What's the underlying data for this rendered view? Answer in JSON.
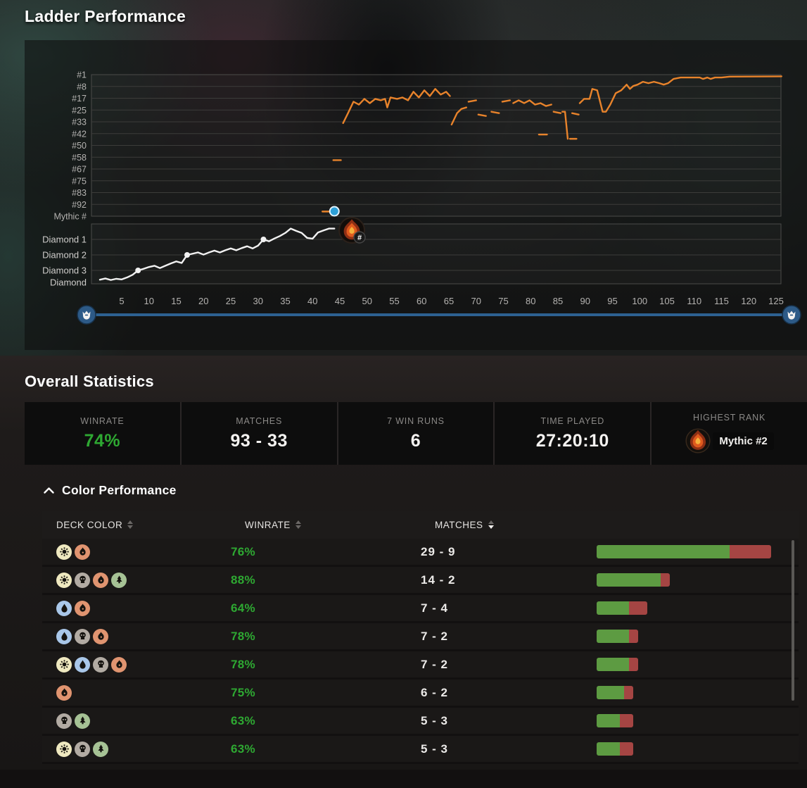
{
  "page": {
    "title": "Ladder Performance",
    "overall_title": "Overall Statistics",
    "color_perf_title": "Color Performance"
  },
  "chart_data": {
    "type": "line",
    "title": "Ladder Performance",
    "x_range": [
      1,
      126
    ],
    "x_ticks": [
      5,
      10,
      15,
      20,
      25,
      30,
      35,
      40,
      45,
      50,
      55,
      60,
      65,
      70,
      75,
      80,
      85,
      90,
      95,
      100,
      105,
      110,
      115,
      120,
      125
    ],
    "mythic_axis_labels": [
      "#1",
      "#8",
      "#17",
      "#25",
      "#33",
      "#42",
      "#50",
      "#58",
      "#67",
      "#75",
      "#83",
      "#92",
      "Mythic #"
    ],
    "diamond_axis_labels": [
      "Diamond 1",
      "Diamond 2",
      "Diamond 3",
      "Diamond"
    ],
    "grid": true,
    "series": [
      {
        "name": "mythic-rank",
        "color": "#e8832b",
        "segments": [
          [
            [
              41.8,
              97
            ],
            [
              43.2,
              97
            ]
          ],
          [
            [
              43.8,
              61
            ],
            [
              45.2,
              61
            ]
          ],
          [
            [
              45.6,
              35
            ],
            [
              46.5,
              28
            ],
            [
              47.5,
              20
            ],
            [
              48.5,
              22
            ],
            [
              49.5,
              18
            ],
            [
              50.5,
              21
            ],
            [
              51.5,
              18
            ],
            [
              52.5,
              19
            ],
            [
              53.3,
              18
            ],
            [
              53.7,
              24
            ],
            [
              54.3,
              17
            ],
            [
              55.5,
              18
            ],
            [
              56.5,
              17
            ],
            [
              57.5,
              19
            ],
            [
              58.5,
              13
            ],
            [
              59.5,
              17
            ],
            [
              60.5,
              12
            ],
            [
              61.5,
              16
            ],
            [
              62.5,
              11
            ],
            [
              63.5,
              15
            ],
            [
              64.5,
              13
            ],
            [
              65.2,
              16
            ]
          ],
          [
            [
              65.5,
              36
            ],
            [
              66.5,
              28
            ],
            [
              67.3,
              25
            ],
            [
              68.2,
              24
            ]
          ],
          [
            [
              68.6,
              20
            ],
            [
              70,
              19
            ]
          ],
          [
            [
              70.4,
              29
            ],
            [
              71.8,
              30
            ]
          ],
          [
            [
              72.8,
              27
            ],
            [
              74.2,
              28
            ]
          ],
          [
            [
              74.8,
              20
            ],
            [
              76.2,
              19
            ]
          ],
          [
            [
              76.8,
              21
            ],
            [
              77.8,
              19
            ],
            [
              78.8,
              21
            ],
            [
              79.8,
              19
            ],
            [
              80.8,
              22
            ],
            [
              81.8,
              21
            ],
            [
              82.8,
              23
            ],
            [
              83.8,
              22
            ]
          ],
          [
            [
              81.5,
              43
            ],
            [
              83,
              43
            ]
          ],
          [
            [
              84.2,
              27
            ],
            [
              85.5,
              28
            ]
          ],
          [
            [
              85.8,
              27
            ],
            [
              86.3,
              27
            ],
            [
              86.8,
              46
            ]
          ],
          [
            [
              87.2,
              46
            ],
            [
              88.4,
              46
            ]
          ],
          [
            [
              87.6,
              28
            ],
            [
              88.8,
              29
            ]
          ],
          [
            [
              89,
              21
            ],
            [
              89.8,
              18
            ],
            [
              90.8,
              18
            ],
            [
              91.3,
              11
            ],
            [
              92.2,
              12
            ],
            [
              93.2,
              27
            ],
            [
              93.8,
              27
            ],
            [
              94.6,
              22
            ],
            [
              95.6,
              14
            ],
            [
              96.6,
              12
            ],
            [
              97.6,
              8
            ],
            [
              98.2,
              11
            ],
            [
              98.8,
              9
            ],
            [
              99.6,
              8
            ],
            [
              100.6,
              6
            ],
            [
              101.6,
              7
            ],
            [
              102.6,
              6
            ],
            [
              103.6,
              7
            ],
            [
              104.4,
              8
            ],
            [
              105.2,
              7
            ],
            [
              106.2,
              4
            ],
            [
              107.5,
              3
            ],
            [
              111,
              3
            ],
            [
              111.6,
              4
            ],
            [
              112.4,
              3
            ],
            [
              113,
              4
            ],
            [
              113.8,
              3
            ],
            [
              115,
              3
            ],
            [
              116.5,
              2.4
            ],
            [
              126,
              2.2
            ]
          ]
        ]
      },
      {
        "name": "diamond-progress",
        "color": "#f2f2f2",
        "points": [
          [
            1,
            0.4
          ],
          [
            2,
            0.48
          ],
          [
            3,
            0.38
          ],
          [
            4,
            0.46
          ],
          [
            5,
            0.42
          ],
          [
            6,
            0.55
          ],
          [
            7,
            0.72
          ],
          [
            8,
            1.0
          ],
          [
            9,
            1.1
          ],
          [
            10,
            1.22
          ],
          [
            11,
            1.3
          ],
          [
            12,
            1.15
          ],
          [
            13,
            1.3
          ],
          [
            14,
            1.45
          ],
          [
            15,
            1.58
          ],
          [
            16,
            1.48
          ],
          [
            17,
            2.0
          ],
          [
            18,
            2.08
          ],
          [
            19,
            2.16
          ],
          [
            20,
            2.02
          ],
          [
            21,
            2.16
          ],
          [
            22,
            2.28
          ],
          [
            23,
            2.16
          ],
          [
            24,
            2.3
          ],
          [
            25,
            2.42
          ],
          [
            26,
            2.3
          ],
          [
            27,
            2.44
          ],
          [
            28,
            2.56
          ],
          [
            29,
            2.42
          ],
          [
            30,
            2.6
          ],
          [
            31,
            3.0
          ],
          [
            32,
            2.88
          ],
          [
            33,
            3.06
          ],
          [
            34,
            3.22
          ],
          [
            35,
            3.42
          ],
          [
            36,
            3.7
          ],
          [
            37,
            3.55
          ],
          [
            38,
            3.42
          ],
          [
            39,
            3.1
          ],
          [
            40,
            3.05
          ],
          [
            41,
            3.45
          ],
          [
            42,
            3.58
          ],
          [
            43,
            3.7
          ],
          [
            44,
            3.7
          ]
        ],
        "promotion_dots": [
          8,
          17,
          31
        ]
      }
    ],
    "markers": {
      "mythic_placement_dot": {
        "match": 44,
        "color": "#2da0d8"
      },
      "mythic_badge": {
        "match": 47.2,
        "bubble_label": "#"
      }
    },
    "slider": {
      "track_color": "#2d6191",
      "handle_color": "#2d5a87",
      "handle_icon": "beard-crown"
    }
  },
  "stats": [
    {
      "label": "WINRATE",
      "value": "74%",
      "color": "#2ea832"
    },
    {
      "label": "MATCHES",
      "value": "93 - 33"
    },
    {
      "label": "7 WIN RUNS",
      "value": "6"
    },
    {
      "label": "TIME PLAYED",
      "value": "27:20:10"
    },
    {
      "label": "HIGHEST RANK",
      "value": "Mythic #2",
      "badge": "mythic-flame"
    }
  ],
  "table": {
    "headers": [
      {
        "label": "DECK COLOR",
        "sort": "none"
      },
      {
        "label": "WINRATE",
        "sort": "none"
      },
      {
        "label": "MATCHES",
        "sort": "desc"
      }
    ],
    "mana_colors": {
      "W": "#efe9c0",
      "U": "#a9c7e9",
      "B": "#b2aba3",
      "R": "#e09470",
      "G": "#a6c295"
    },
    "bar_colors": {
      "win": "#5d9b42",
      "loss": "#a54543"
    },
    "bar_max_total": 38,
    "rows": [
      {
        "colors": [
          "W",
          "R"
        ],
        "winrate": "76%",
        "record": "29 - 9",
        "wins": 29,
        "losses": 9
      },
      {
        "colors": [
          "W",
          "B",
          "R",
          "G"
        ],
        "winrate": "88%",
        "record": "14 - 2",
        "wins": 14,
        "losses": 2
      },
      {
        "colors": [
          "U",
          "R"
        ],
        "winrate": "64%",
        "record": "7 - 4",
        "wins": 7,
        "losses": 4
      },
      {
        "colors": [
          "U",
          "B",
          "R"
        ],
        "winrate": "78%",
        "record": "7 - 2",
        "wins": 7,
        "losses": 2
      },
      {
        "colors": [
          "W",
          "U",
          "B",
          "R"
        ],
        "winrate": "78%",
        "record": "7 - 2",
        "wins": 7,
        "losses": 2
      },
      {
        "colors": [
          "R"
        ],
        "winrate": "75%",
        "record": "6 - 2",
        "wins": 6,
        "losses": 2
      },
      {
        "colors": [
          "B",
          "G"
        ],
        "winrate": "63%",
        "record": "5 - 3",
        "wins": 5,
        "losses": 3
      },
      {
        "colors": [
          "W",
          "B",
          "G"
        ],
        "winrate": "63%",
        "record": "5 - 3",
        "wins": 5,
        "losses": 3
      }
    ]
  }
}
